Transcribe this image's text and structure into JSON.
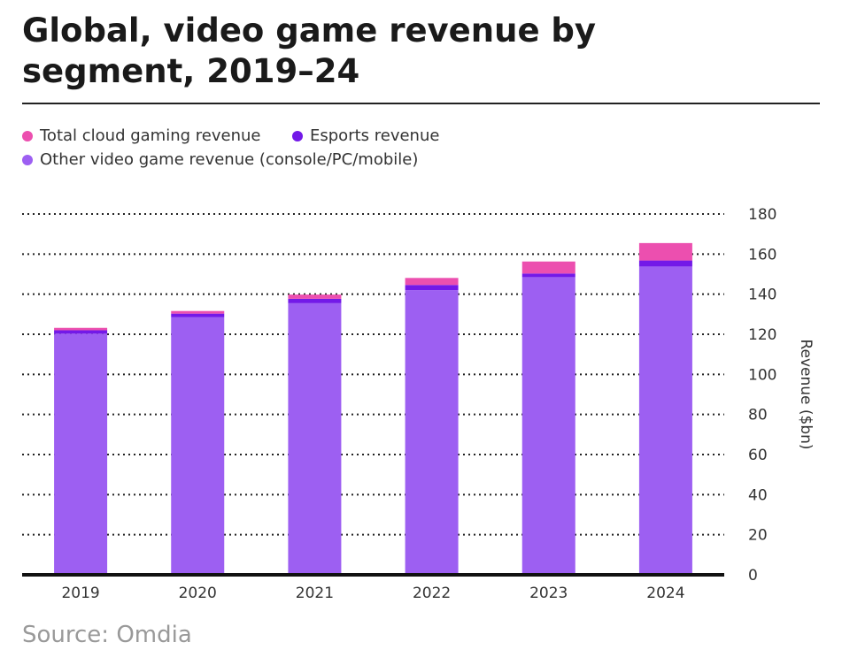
{
  "title": "Global, video game revenue by segment, 2019–24",
  "source": "Source: Omdia",
  "colors": {
    "cloud": "#ec4faf",
    "esports": "#7319e8",
    "other": "#9d5ff2"
  },
  "chart_data": {
    "type": "bar",
    "stacked": true,
    "title": "Global, video game revenue by segment, 2019–24",
    "xlabel": "",
    "ylabel": "Revenue ($bn)",
    "ylim": [
      0,
      180
    ],
    "yticks": [
      0,
      20,
      40,
      60,
      80,
      100,
      120,
      140,
      160,
      180
    ],
    "grid": true,
    "legend_position": "top-left",
    "categories": [
      "2019",
      "2020",
      "2021",
      "2022",
      "2023",
      "2024"
    ],
    "series": [
      {
        "name": "Other video game revenue (console/PC/mobile)",
        "key": "other",
        "values": [
          120.3,
          128.6,
          135.5,
          142.0,
          148.5,
          153.8
        ]
      },
      {
        "name": "Esports revenue",
        "key": "esports",
        "values": [
          1.7,
          1.7,
          2.2,
          2.6,
          1.8,
          3.0
        ]
      },
      {
        "name": "Total cloud gaming revenue",
        "key": "cloud",
        "values": [
          1.2,
          1.3,
          2.1,
          3.5,
          6.0,
          8.7
        ]
      }
    ]
  }
}
